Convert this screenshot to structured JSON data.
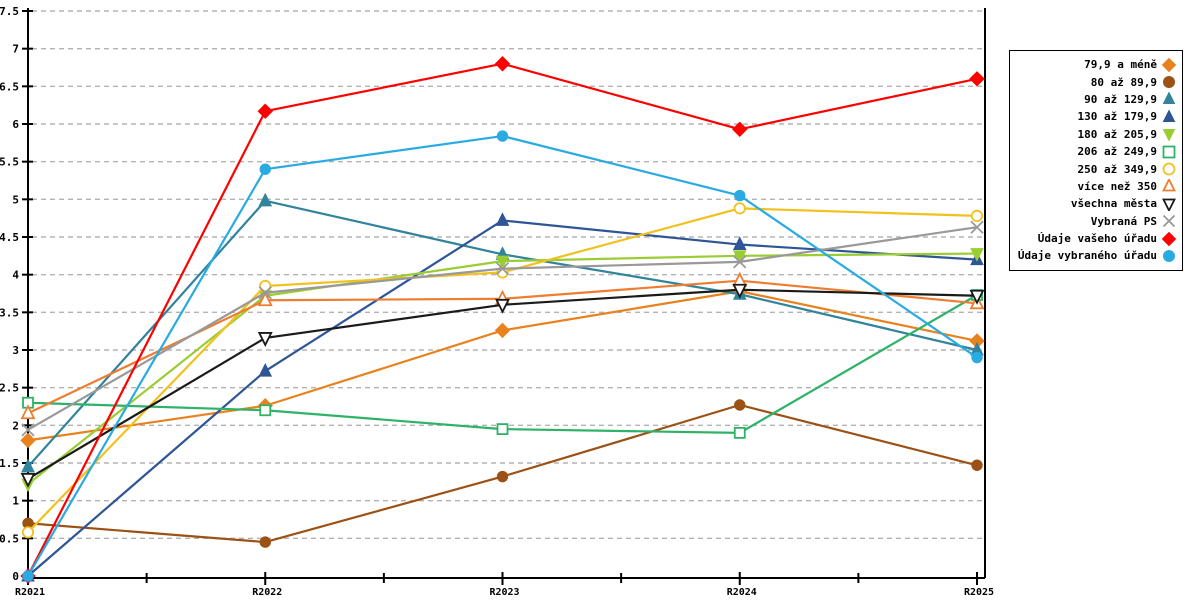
{
  "chart_data": {
    "type": "line",
    "title": "",
    "xlabel": "",
    "ylabel": "",
    "x_labels": [
      "R2021",
      "R2022",
      "R2023",
      "R2024",
      "R2025"
    ],
    "ylim": [
      0,
      7.5
    ],
    "y_tick_step": 0.5,
    "y_tick_labels": [
      "0",
      "0.5",
      "1",
      "1.5",
      "2",
      "2.5",
      "3",
      "3.5",
      "4",
      "4.5",
      "5",
      "5.5",
      "6",
      "6.5",
      "7",
      "7.5"
    ],
    "grid": true,
    "legend_position": "right",
    "series": [
      {
        "name": "79,9 a méně",
        "marker": "diamond",
        "filled": true,
        "color": "#E8821E",
        "values": [
          1.8,
          2.26,
          3.26,
          3.78,
          3.12
        ]
      },
      {
        "name": "80 až 89,9",
        "marker": "circle",
        "filled": true,
        "color": "#9C5115",
        "values": [
          0.7,
          0.45,
          1.32,
          2.27,
          1.47
        ]
      },
      {
        "name": "90 až 129,9",
        "marker": "triangle-up",
        "filled": true,
        "color": "#31849B",
        "values": [
          1.45,
          4.98,
          4.27,
          3.74,
          3.0
        ]
      },
      {
        "name": "130 až 179,9",
        "marker": "triangle-up",
        "filled": true,
        "color": "#2F5597",
        "values": [
          0.0,
          2.72,
          4.72,
          4.4,
          4.2
        ]
      },
      {
        "name": "180 až 205,9",
        "marker": "triangle-down",
        "filled": true,
        "color": "#9ACD32",
        "values": [
          1.22,
          3.72,
          4.18,
          4.25,
          4.28
        ]
      },
      {
        "name": "206 až 249,9",
        "marker": "square",
        "filled": false,
        "color": "#2EB268",
        "values": [
          2.3,
          2.2,
          1.95,
          1.9,
          3.73
        ]
      },
      {
        "name": "250 až 349,9",
        "marker": "circle",
        "filled": false,
        "color": "#F2C11E",
        "values": [
          0.58,
          3.85,
          4.03,
          4.88,
          4.78
        ]
      },
      {
        "name": "více než 350",
        "marker": "triangle-up",
        "filled": false,
        "color": "#ED7D31",
        "values": [
          2.16,
          3.66,
          3.68,
          3.92,
          3.62
        ]
      },
      {
        "name": "všechna města",
        "marker": "triangle-down",
        "filled": false,
        "color": "#1A1A1A",
        "values": [
          1.29,
          3.16,
          3.6,
          3.8,
          3.72
        ]
      },
      {
        "name": "Vybraná PS",
        "marker": "x",
        "filled": false,
        "color": "#999999",
        "values": [
          1.94,
          3.76,
          4.08,
          4.17,
          4.63
        ]
      },
      {
        "name": "Údaje vašeho úřadu",
        "marker": "diamond",
        "filled": true,
        "color": "#FE0000",
        "values": [
          0.0,
          6.17,
          6.8,
          5.93,
          6.6
        ]
      },
      {
        "name": "Údaje vybraného úřadu",
        "marker": "circle",
        "filled": true,
        "color": "#29ABE2",
        "values": [
          0.0,
          5.4,
          5.84,
          5.05,
          2.9
        ]
      }
    ]
  },
  "colors": {
    "background": "#FFFFFF",
    "grid": "#B3B3B3",
    "axis": "#000000",
    "legend_border": "#000000",
    "text": "#000000"
  }
}
